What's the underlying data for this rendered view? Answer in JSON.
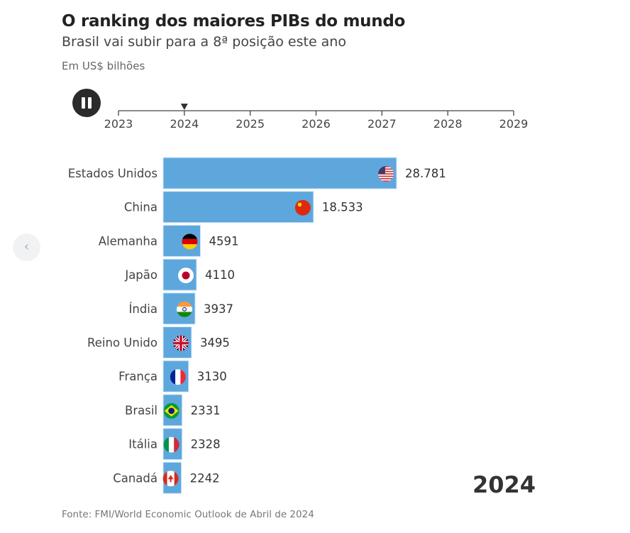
{
  "header": {
    "title": "O ranking dos maiores PIBs do mundo",
    "subtitle": "Brasil vai subir para a 8ª posição este ano",
    "unit": "Em US$ bilhões"
  },
  "controls": {
    "pause_icon": "pause-icon",
    "prev_icon": "chevron-left-icon",
    "prev_glyph": "‹"
  },
  "timeline": {
    "years": [
      "2023",
      "2024",
      "2025",
      "2026",
      "2027",
      "2028",
      "2029"
    ],
    "current": "2024"
  },
  "current_year_label": "2024",
  "footer": {
    "source": "Fonte: FMI/World Economic Outlook de Abril de 2024"
  },
  "colors": {
    "bar": "#5ea7dd",
    "bar_edge": "#cfe6f7"
  },
  "chart_data": {
    "type": "bar",
    "orientation": "horizontal",
    "categories": [
      "Estados Unidos",
      "China",
      "Alemanha",
      "Japão",
      "Índia",
      "Reino Unido",
      "França",
      "Brasil",
      "Itália",
      "Canadá"
    ],
    "values": [
      28781,
      18533,
      4591,
      4110,
      3937,
      3495,
      3130,
      2331,
      2328,
      2242
    ],
    "value_labels": [
      "28.781",
      "18.533",
      "4591",
      "4110",
      "3937",
      "3495",
      "3130",
      "2331",
      "2328",
      "2242"
    ],
    "flags": [
      "us",
      "cn",
      "de",
      "jp",
      "in",
      "gb",
      "fr",
      "br",
      "it",
      "ca"
    ],
    "xlim": [
      0,
      28781
    ]
  }
}
